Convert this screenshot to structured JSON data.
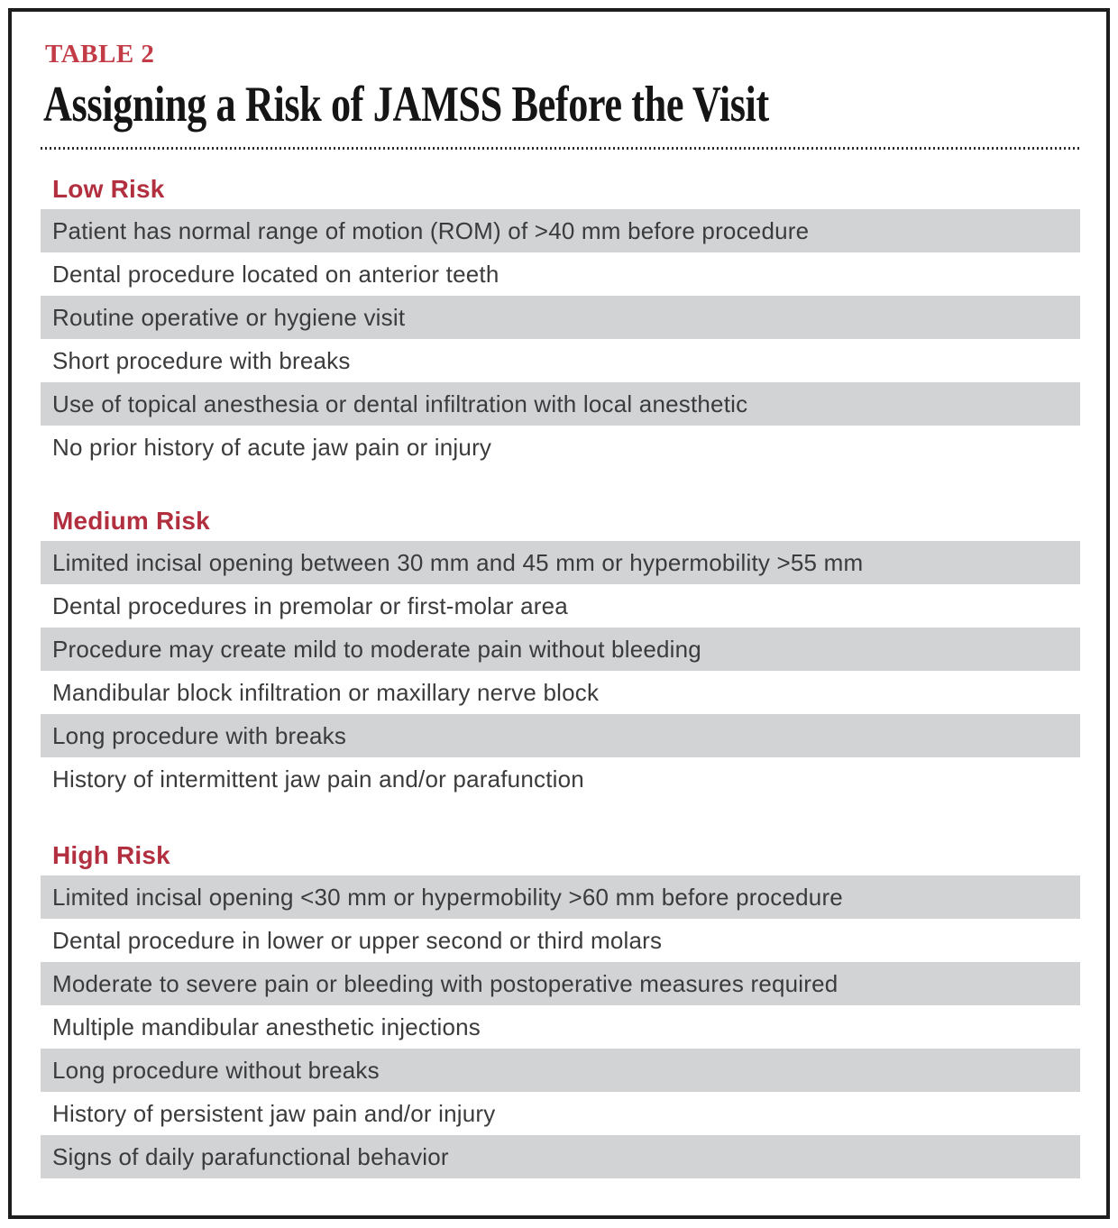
{
  "table_label": "TABLE 2",
  "title": "Assigning a Risk of JAMSS Before the Visit",
  "colors": {
    "accent_red": "#b22f3f",
    "label_red": "#c23b46",
    "row_gray": "#d2d3d5",
    "text": "#3b3b3d",
    "border": "#1d1d1d"
  },
  "sections": [
    {
      "heading": "Low Risk",
      "rows": [
        "Patient has normal range of motion (ROM) of >40 mm before procedure",
        "Dental procedure located on anterior teeth",
        "Routine operative or hygiene visit",
        "Short procedure with breaks",
        "Use of topical anesthesia or dental infiltration with local anesthetic",
        "No prior history of acute jaw pain or injury"
      ]
    },
    {
      "heading": "Medium Risk",
      "rows": [
        "Limited incisal opening between 30 mm and 45 mm or hypermobility >55 mm",
        "Dental procedures in premolar or first-molar area",
        "Procedure may create mild to moderate pain without bleeding",
        "Mandibular block infiltration or maxillary nerve block",
        "Long procedure with breaks",
        "History of intermittent jaw pain and/or parafunction"
      ]
    },
    {
      "heading": "High Risk",
      "rows": [
        "Limited incisal opening <30 mm or hypermobility >60 mm before procedure",
        "Dental procedure in lower or upper second or third molars",
        "Moderate to severe pain or bleeding with postoperative measures required",
        "Multiple mandibular anesthetic injections",
        "Long procedure without breaks",
        "History of persistent jaw pain and/or injury",
        "Signs of daily parafunctional behavior"
      ]
    }
  ]
}
